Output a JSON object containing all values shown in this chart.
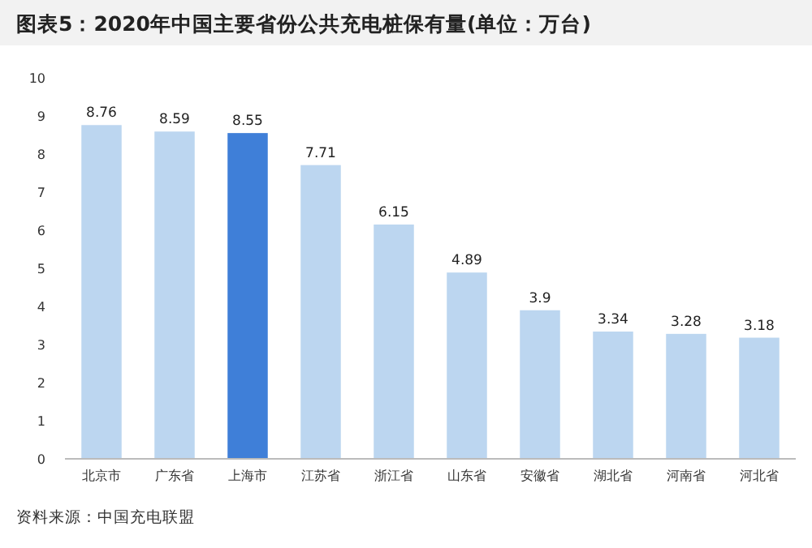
{
  "chart_data": {
    "type": "bar",
    "title": "图表5：2020年中国主要省份公共充电桩保有量(单位：万台)",
    "categories": [
      "北京市",
      "广东省",
      "上海市",
      "江苏省",
      "浙江省",
      "山东省",
      "安徽省",
      "湖北省",
      "河南省",
      "河北省"
    ],
    "values": [
      8.76,
      8.59,
      8.55,
      7.71,
      6.15,
      4.89,
      3.9,
      3.34,
      3.28,
      3.18
    ],
    "colors": [
      "#bcd6f0",
      "#bcd6f0",
      "#3f7fd8",
      "#bcd6f0",
      "#bcd6f0",
      "#bcd6f0",
      "#bcd6f0",
      "#bcd6f0",
      "#bcd6f0",
      "#bcd6f0"
    ],
    "ylim": [
      0,
      10
    ],
    "yticks": [
      0,
      1,
      2,
      3,
      4,
      5,
      6,
      7,
      8,
      9,
      10
    ],
    "data_labels": true,
    "annotations": [
      "资料来源：中国充电联盟"
    ]
  }
}
